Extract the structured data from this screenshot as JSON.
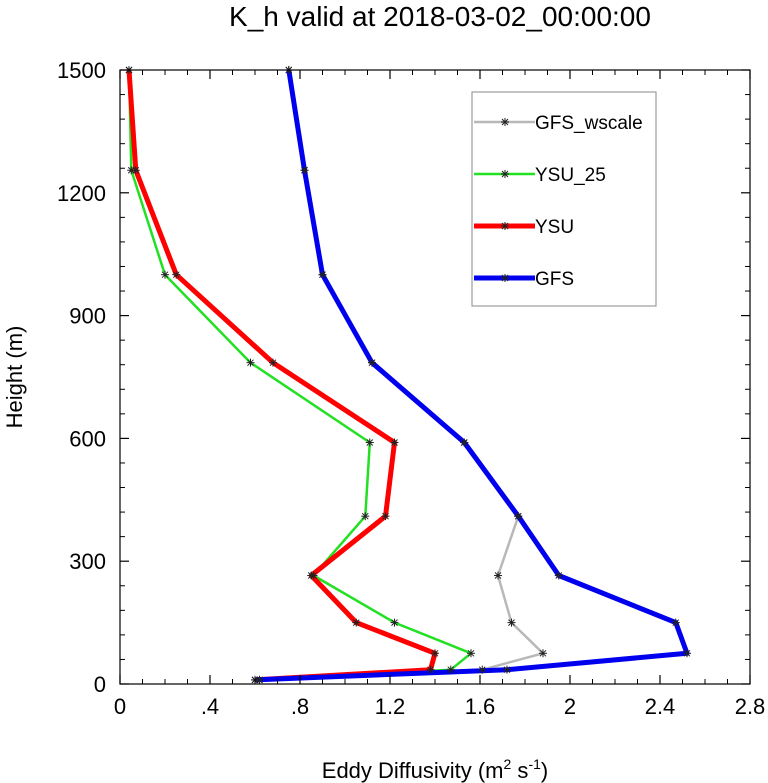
{
  "chart_data": {
    "type": "line",
    "title": "K_h valid at 2018-03-02_00:00:00",
    "xlabel": "Eddy Diffusivity (m",
    "xlabel_sup1": "2",
    "xlabel_mid": " s",
    "xlabel_sup2": "-1",
    "xlabel_end": ")",
    "ylabel": "Height (m)",
    "xlim": [
      0,
      2.8
    ],
    "ylim": [
      0,
      1500
    ],
    "x_ticks": [
      0,
      0.4,
      0.8,
      1.2,
      1.6,
      2,
      2.4,
      2.8
    ],
    "x_tick_labels": [
      "0",
      ".4",
      ".8",
      "1.2",
      "1.6",
      "2",
      "2.4",
      "2.8"
    ],
    "y_ticks": [
      0,
      300,
      600,
      900,
      1200,
      1500
    ],
    "y_tick_labels": [
      "0",
      "300",
      "600",
      "900",
      "1200",
      "1500"
    ],
    "grid": false,
    "legend_position": "top-right",
    "series": [
      {
        "name": "GFS_wscale",
        "color": "#b8b8b8",
        "stroke": 2.5,
        "x": [
          0.62,
          1.61,
          1.88,
          1.74,
          1.68,
          1.77,
          1.53,
          1.12,
          0.9,
          0.82,
          0.75
        ],
        "y": [
          10,
          35,
          75,
          150,
          265,
          410,
          590,
          785,
          1000,
          1255,
          1500
        ]
      },
      {
        "name": "YSU_25",
        "color": "#22e022",
        "stroke": 2.5,
        "x": [
          0.62,
          1.47,
          1.56,
          1.22,
          0.86,
          1.09,
          1.11,
          0.58,
          0.2,
          0.05,
          0.04
        ],
        "y": [
          10,
          35,
          75,
          150,
          265,
          410,
          590,
          785,
          1000,
          1255,
          1500
        ]
      },
      {
        "name": "YSU",
        "color": "#ff0000",
        "stroke": 5,
        "x": [
          0.6,
          1.38,
          1.4,
          1.05,
          0.85,
          1.18,
          1.22,
          0.68,
          0.25,
          0.07,
          0.04
        ],
        "y": [
          10,
          35,
          75,
          150,
          265,
          410,
          590,
          785,
          1000,
          1255,
          1500
        ]
      },
      {
        "name": "GFS",
        "color": "#0000ee",
        "stroke": 5,
        "x": [
          0.6,
          1.72,
          2.52,
          2.47,
          1.95,
          1.77,
          1.53,
          1.12,
          0.9,
          0.82,
          0.75
        ],
        "y": [
          10,
          35,
          75,
          150,
          265,
          410,
          590,
          785,
          1000,
          1255,
          1500
        ]
      }
    ]
  }
}
